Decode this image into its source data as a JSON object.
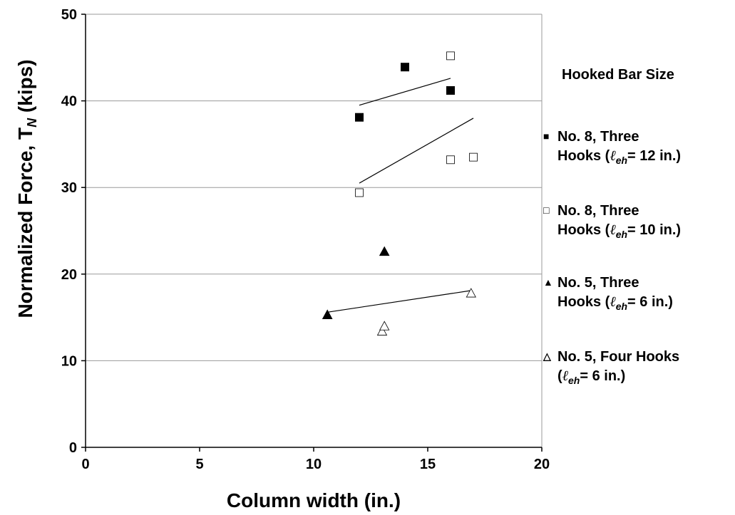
{
  "chart_data": {
    "type": "scatter",
    "title": "",
    "xlabel": "Column width (in.)",
    "ylabel": "Normalized Force, T",
    "ylabel_subscript": "N",
    "ylabel_unit": " (kips)",
    "xlim": [
      0,
      20
    ],
    "ylim": [
      0,
      50
    ],
    "x_ticks": [
      "0",
      "5",
      "10",
      "15",
      "20"
    ],
    "y_ticks": [
      "0",
      "10",
      "20",
      "30",
      "40",
      "50"
    ],
    "grid": "horizontal",
    "legend_position": "right",
    "legend_title": "Hooked Bar Size",
    "series": [
      {
        "legend_line1": "No. 8, Three",
        "legend_line2_pre": "Hooks (",
        "legend_line2_post": "= 12 in.)",
        "marker": "filled-square",
        "points": [
          [
            12.0,
            38.1
          ],
          [
            14.0,
            43.9
          ],
          [
            16.0,
            41.2
          ]
        ],
        "trend": [
          [
            12.0,
            39.5
          ],
          [
            16.0,
            42.6
          ]
        ]
      },
      {
        "legend_line1": "No. 8, Three",
        "legend_line2_pre": "Hooks (",
        "legend_line2_post": "= 10 in.)",
        "marker": "open-square",
        "points": [
          [
            12.0,
            29.4
          ],
          [
            16.0,
            45.2
          ],
          [
            16.0,
            33.2
          ],
          [
            17.0,
            33.5
          ]
        ],
        "trend": [
          [
            12.0,
            30.5
          ],
          [
            17.0,
            38.0
          ]
        ]
      },
      {
        "legend_line1": "No. 5, Three",
        "legend_line2_pre": "Hooks (",
        "legend_line2_post": "= 6 in.)",
        "marker": "filled-triangle",
        "points": [
          [
            10.6,
            15.3
          ],
          [
            13.1,
            22.6
          ]
        ],
        "trend": null
      },
      {
        "legend_line1": "No. 5, Four Hooks",
        "legend_line2_pre": "(",
        "legend_line2_post": "= 6 in.)",
        "marker": "open-triangle",
        "points": [
          [
            13.0,
            13.4
          ],
          [
            13.1,
            14.0
          ],
          [
            16.9,
            17.8
          ]
        ],
        "trend": [
          [
            10.6,
            15.6
          ],
          [
            16.9,
            18.1
          ]
        ]
      }
    ],
    "legend_symbol_ell": "ℓ",
    "legend_symbol_sub": "eh",
    "legend_markers": [
      "■",
      "□",
      "▲",
      "△"
    ]
  }
}
